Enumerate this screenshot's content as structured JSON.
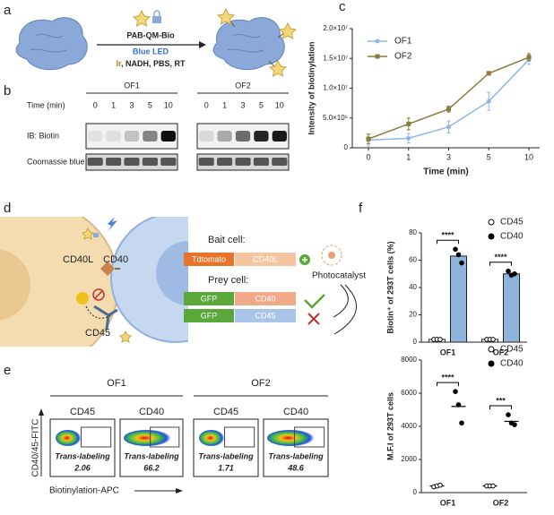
{
  "panel_labels": [
    "a",
    "b",
    "c",
    "d",
    "e",
    "f"
  ],
  "panel_a": {
    "reagent": "PAB-QM-Bio",
    "light": "Blue LED",
    "catalyst": "Ir",
    "conditions": ", NADH, PBS, RT"
  },
  "panel_b": {
    "time_label": "Time (min)",
    "rows": [
      "IB: Biotin",
      "Coomassie blue"
    ],
    "groups": [
      {
        "name": "OF1",
        "times": [
          "0",
          "1",
          "3",
          "5",
          "10"
        ],
        "biotin_band_intensity": [
          0.06,
          0.08,
          0.2,
          0.45,
          0.95
        ]
      },
      {
        "name": "OF2",
        "times": [
          "0",
          "1",
          "3",
          "5",
          "10"
        ],
        "biotin_band_intensity": [
          0.1,
          0.3,
          0.55,
          0.85,
          0.9
        ]
      }
    ]
  },
  "panel_d": {
    "cell_labels": [
      "CD40L",
      "CD40",
      "CD45"
    ],
    "bait_title": "Bait cell:",
    "bait": [
      "Tdtomato",
      "CD40L"
    ],
    "prey_title": "Prey cell:",
    "prey": [
      [
        "GFP",
        "CD40"
      ],
      [
        "GFP",
        "CD45"
      ]
    ],
    "catalyst": "Photocatalyst"
  },
  "panel_e": {
    "y_axis": "CD40/45-FITC",
    "x_axis": "Biotinylation-APC",
    "groups": [
      {
        "name": "OF1",
        "plots": [
          {
            "marker": "CD45",
            "gate_label": "Trans-labeling",
            "gate_value": 2.06
          },
          {
            "marker": "CD40",
            "gate_label": "Trans-labeling",
            "gate_value": 66.2
          }
        ]
      },
      {
        "name": "OF2",
        "plots": [
          {
            "marker": "CD45",
            "gate_label": "Trans-labeling",
            "gate_value": 1.71
          },
          {
            "marker": "CD40",
            "gate_label": "Trans-labeling",
            "gate_value": 48.6
          }
        ]
      }
    ]
  },
  "chart_data": [
    {
      "type": "line",
      "ylabel": "Intensity of biotinylation",
      "xlabel": "Time (min)",
      "categories": [
        "0",
        "1",
        "3",
        "5",
        "10"
      ],
      "ylim": [
        0,
        20000000
      ],
      "yticks": [
        0,
        {
          "value": 5000000,
          "label": "5.0×10⁶"
        },
        {
          "value": 10000000,
          "label": "1.0×10⁷"
        },
        {
          "value": 15000000,
          "label": "1.5×10⁷"
        },
        {
          "value": 20000000,
          "label": "2.0×10⁷"
        }
      ],
      "series": [
        {
          "name": "OF1",
          "color": "#8db8e8",
          "values": [
            1300000,
            1600000,
            3500000,
            7800000,
            14800000
          ],
          "errors": [
            1000000,
            800000,
            1000000,
            1500000,
            800000
          ]
        },
        {
          "name": "OF2",
          "color": "#8b7a3a",
          "values": [
            1500000,
            4000000,
            6500000,
            12500000,
            15200000
          ],
          "errors": [
            800000,
            1000000,
            500000,
            300000,
            600000
          ]
        }
      ]
    },
    {
      "type": "bar",
      "ylabel": "Biotin⁺ of 293T cells (%)",
      "categories": [
        "OF1",
        "OF2"
      ],
      "significance": [
        "****",
        "****"
      ],
      "ylim": [
        0,
        80
      ],
      "yticks": [
        0,
        20,
        40,
        60,
        80
      ],
      "series": [
        {
          "name": "CD45",
          "color": "#ffffff",
          "point_color": "#ffffff",
          "values": [
            2,
            2
          ],
          "points": [
            [
              2,
              2,
              2
            ],
            [
              2,
              2,
              2
            ]
          ]
        },
        {
          "name": "CD40",
          "color": "#8fb4dc",
          "point_color": "#000000",
          "values": [
            63,
            50
          ],
          "points": [
            [
              68,
              64,
              58
            ],
            [
              52,
              49,
              50
            ]
          ]
        }
      ]
    },
    {
      "type": "dot",
      "ylabel": "M.F.I of 293T cells",
      "categories": [
        "OF1",
        "OF2"
      ],
      "significance": [
        "****",
        "***"
      ],
      "ylim": [
        0,
        8000
      ],
      "yticks": [
        0,
        2000,
        4000,
        6000,
        8000
      ],
      "series": [
        {
          "name": "CD45",
          "color": "#000000",
          "point_color": "#ffffff",
          "values": [
            400,
            400
          ],
          "points": [
            [
              350,
              400,
              450
            ],
            [
              400,
              400,
              400
            ]
          ]
        },
        {
          "name": "CD40",
          "color": "#000000",
          "point_color": "#000000",
          "values": [
            5200,
            4300
          ],
          "points": [
            [
              6100,
              5300,
              4200
            ],
            [
              4700,
              4200,
              4100
            ]
          ]
        }
      ]
    }
  ]
}
